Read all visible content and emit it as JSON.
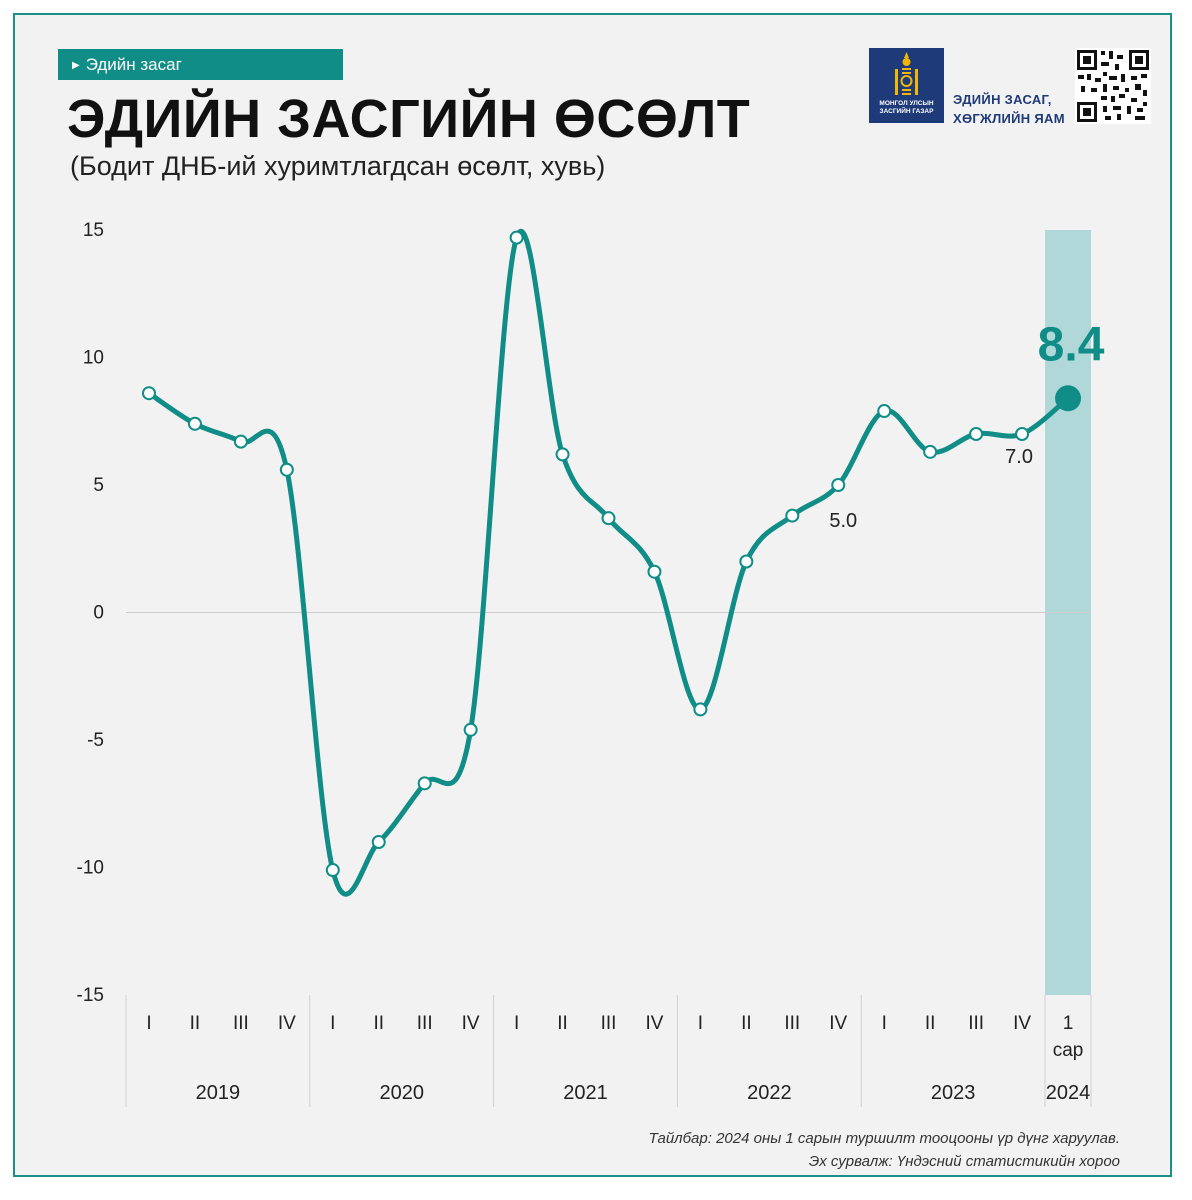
{
  "header": {
    "tag": "Эдийн засаг",
    "title": "ЭДИЙН ЗАСГИЙН ӨСӨЛТ",
    "subtitle": "(Бодит ДНБ-ий хуримтлагдсан өсөлт, хувь)"
  },
  "logos": {
    "government_name": "МОНГОЛ УЛСЫН ЗАСГИЙН ГАЗАР",
    "ministry_line1": "ЭДИЙН ЗАСАГ,",
    "ministry_line2": "ХӨГЖЛИЙН ЯАМ",
    "government_color": "#1e3a78",
    "emblem_color": "#f2b705"
  },
  "colors": {
    "accent": "#0f8d86",
    "highlight_band": "#b0d8d8",
    "frame": "#1a9089",
    "background": "#f2f2f2"
  },
  "chart_data": {
    "type": "line",
    "title": "ЭДИЙН ЗАСГИЙН ӨСӨЛТ",
    "subtitle": "(Бодит ДНБ-ий хуримтлагдсан өсөлт, хувь)",
    "ylim": [
      -15,
      15
    ],
    "yticks": [
      15,
      10,
      5,
      0,
      -5,
      -10,
      -15
    ],
    "grid": "zero line only",
    "categories": [
      "I",
      "II",
      "III",
      "IV",
      "I",
      "II",
      "III",
      "IV",
      "I",
      "II",
      "III",
      "IV",
      "I",
      "II",
      "III",
      "IV",
      "I",
      "II",
      "III",
      "IV",
      "1 сар"
    ],
    "last_category_lines": [
      "1",
      "сар"
    ],
    "years": [
      {
        "label": "2019",
        "count": 4
      },
      {
        "label": "2020",
        "count": 4
      },
      {
        "label": "2021",
        "count": 4
      },
      {
        "label": "2022",
        "count": 4
      },
      {
        "label": "2023",
        "count": 4
      },
      {
        "label": "2024",
        "count": 1
      }
    ],
    "series": [
      {
        "values": [
          8.6,
          7.4,
          6.7,
          5.6,
          -10.1,
          -9.0,
          -6.7,
          -4.6,
          14.7,
          6.2,
          3.7,
          1.6,
          -3.8,
          2.0,
          3.8,
          5.0,
          7.9,
          6.3,
          7.0,
          7.0,
          8.4
        ]
      }
    ],
    "data_labels": [
      {
        "index": 15,
        "text": "5.0"
      },
      {
        "index": 19,
        "text": "7.0"
      },
      {
        "index": 20,
        "text": "8.4"
      }
    ],
    "highlight_index": 20
  },
  "footer": {
    "note": "Тайлбар: 2024 оны 1 сарын туршилт тооцооны үр дүнг харуулав.",
    "source": "Эх сурвалж: Үндэсний статистикийн хороо"
  }
}
